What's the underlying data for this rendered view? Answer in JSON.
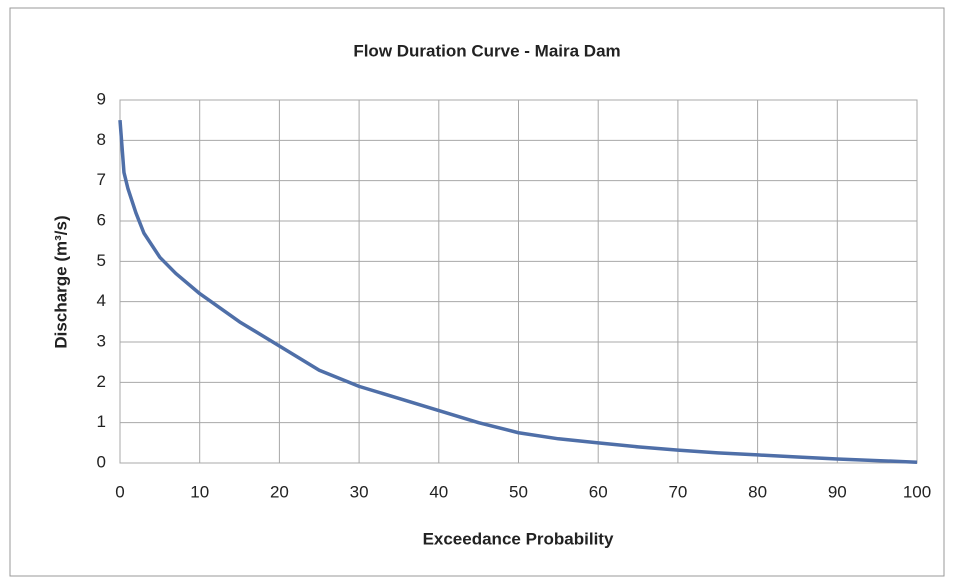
{
  "chart_data": {
    "type": "line",
    "title": "Flow Duration Curve - Maira Dam",
    "x_label": "Exceedance Probability",
    "y_label": "Discharge (m³/s)",
    "x": [
      0,
      0.5,
      1,
      2,
      3,
      5,
      7,
      10,
      15,
      20,
      25,
      30,
      35,
      40,
      45,
      50,
      55,
      60,
      65,
      70,
      75,
      80,
      85,
      90,
      95,
      100
    ],
    "series": [
      {
        "name": "Discharge",
        "color": "#4f6fa8",
        "values": [
          8.5,
          7.2,
          6.8,
          6.2,
          5.7,
          5.1,
          4.7,
          4.2,
          3.5,
          2.9,
          2.3,
          1.9,
          1.6,
          1.3,
          1.0,
          0.75,
          0.6,
          0.5,
          0.4,
          0.32,
          0.25,
          0.2,
          0.15,
          0.1,
          0.06,
          0.02
        ]
      }
    ],
    "xlim": [
      0,
      100
    ],
    "xticks": [
      0,
      10,
      20,
      30,
      40,
      50,
      60,
      70,
      80,
      90,
      100
    ],
    "ylim": [
      0,
      9
    ],
    "yticks": [
      0,
      1,
      2,
      3,
      4,
      5,
      6,
      7,
      8,
      9
    ],
    "grid": true
  }
}
